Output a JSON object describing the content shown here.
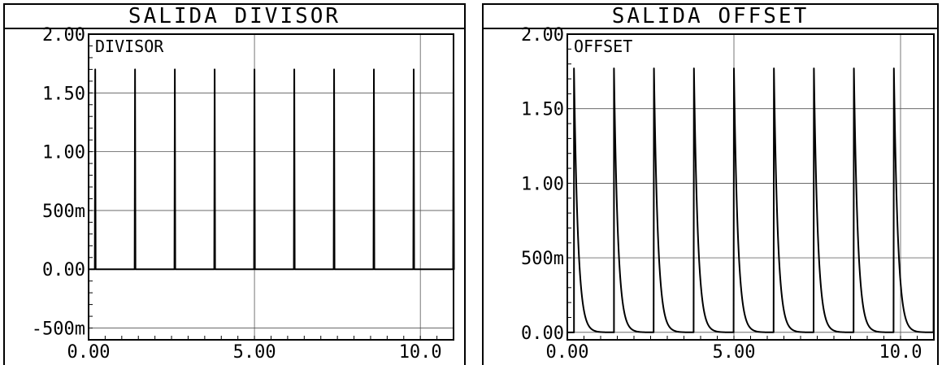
{
  "panels": [
    {
      "window_title": "SALIDA DIVISOR",
      "chart_data": {
        "type": "line",
        "title": "SALIDA DIVISOR",
        "trace_label": "DIVISOR",
        "xlim": [
          0,
          11
        ],
        "ylim": [
          -0.6,
          2.0
        ],
        "x_ticks": [
          0,
          5,
          10
        ],
        "x_tick_labels": [
          "0.00",
          "5.00",
          "10.0"
        ],
        "y_ticks": [
          2.0,
          1.5,
          1.0,
          0.5,
          0.0,
          -0.5
        ],
        "y_tick_labels": [
          "2.00",
          "1.50",
          "1.00",
          "500m",
          "0.00",
          "-500m"
        ],
        "grid": true,
        "waveform": "pulse",
        "baseline": 0.0,
        "pulse_height": 1.7,
        "pulse_times": [
          0.2,
          1.4,
          2.6,
          3.8,
          5.0,
          6.2,
          7.4,
          8.6,
          9.8,
          11.0
        ]
      }
    },
    {
      "window_title": "SALIDA OFFSET",
      "chart_data": {
        "type": "line",
        "title": "SALIDA OFFSET",
        "trace_label": "OFFSET",
        "xlim": [
          0,
          11
        ],
        "ylim": [
          -0.05,
          2.0
        ],
        "x_ticks": [
          0,
          5,
          10
        ],
        "x_tick_labels": [
          "0.00",
          "5.00",
          "10.0"
        ],
        "y_ticks": [
          2.0,
          1.5,
          1.0,
          0.5,
          0.0
        ],
        "y_tick_labels": [
          "2.00",
          "1.50",
          "1.00",
          "500m",
          "0.00"
        ],
        "grid": true,
        "waveform": "decay",
        "baseline": 0.0,
        "pulse_height": 1.77,
        "decay_tau": 0.12,
        "pulse_times": [
          0.2,
          1.4,
          2.6,
          3.8,
          5.0,
          6.2,
          7.4,
          8.6,
          9.8,
          11.0
        ]
      }
    }
  ]
}
